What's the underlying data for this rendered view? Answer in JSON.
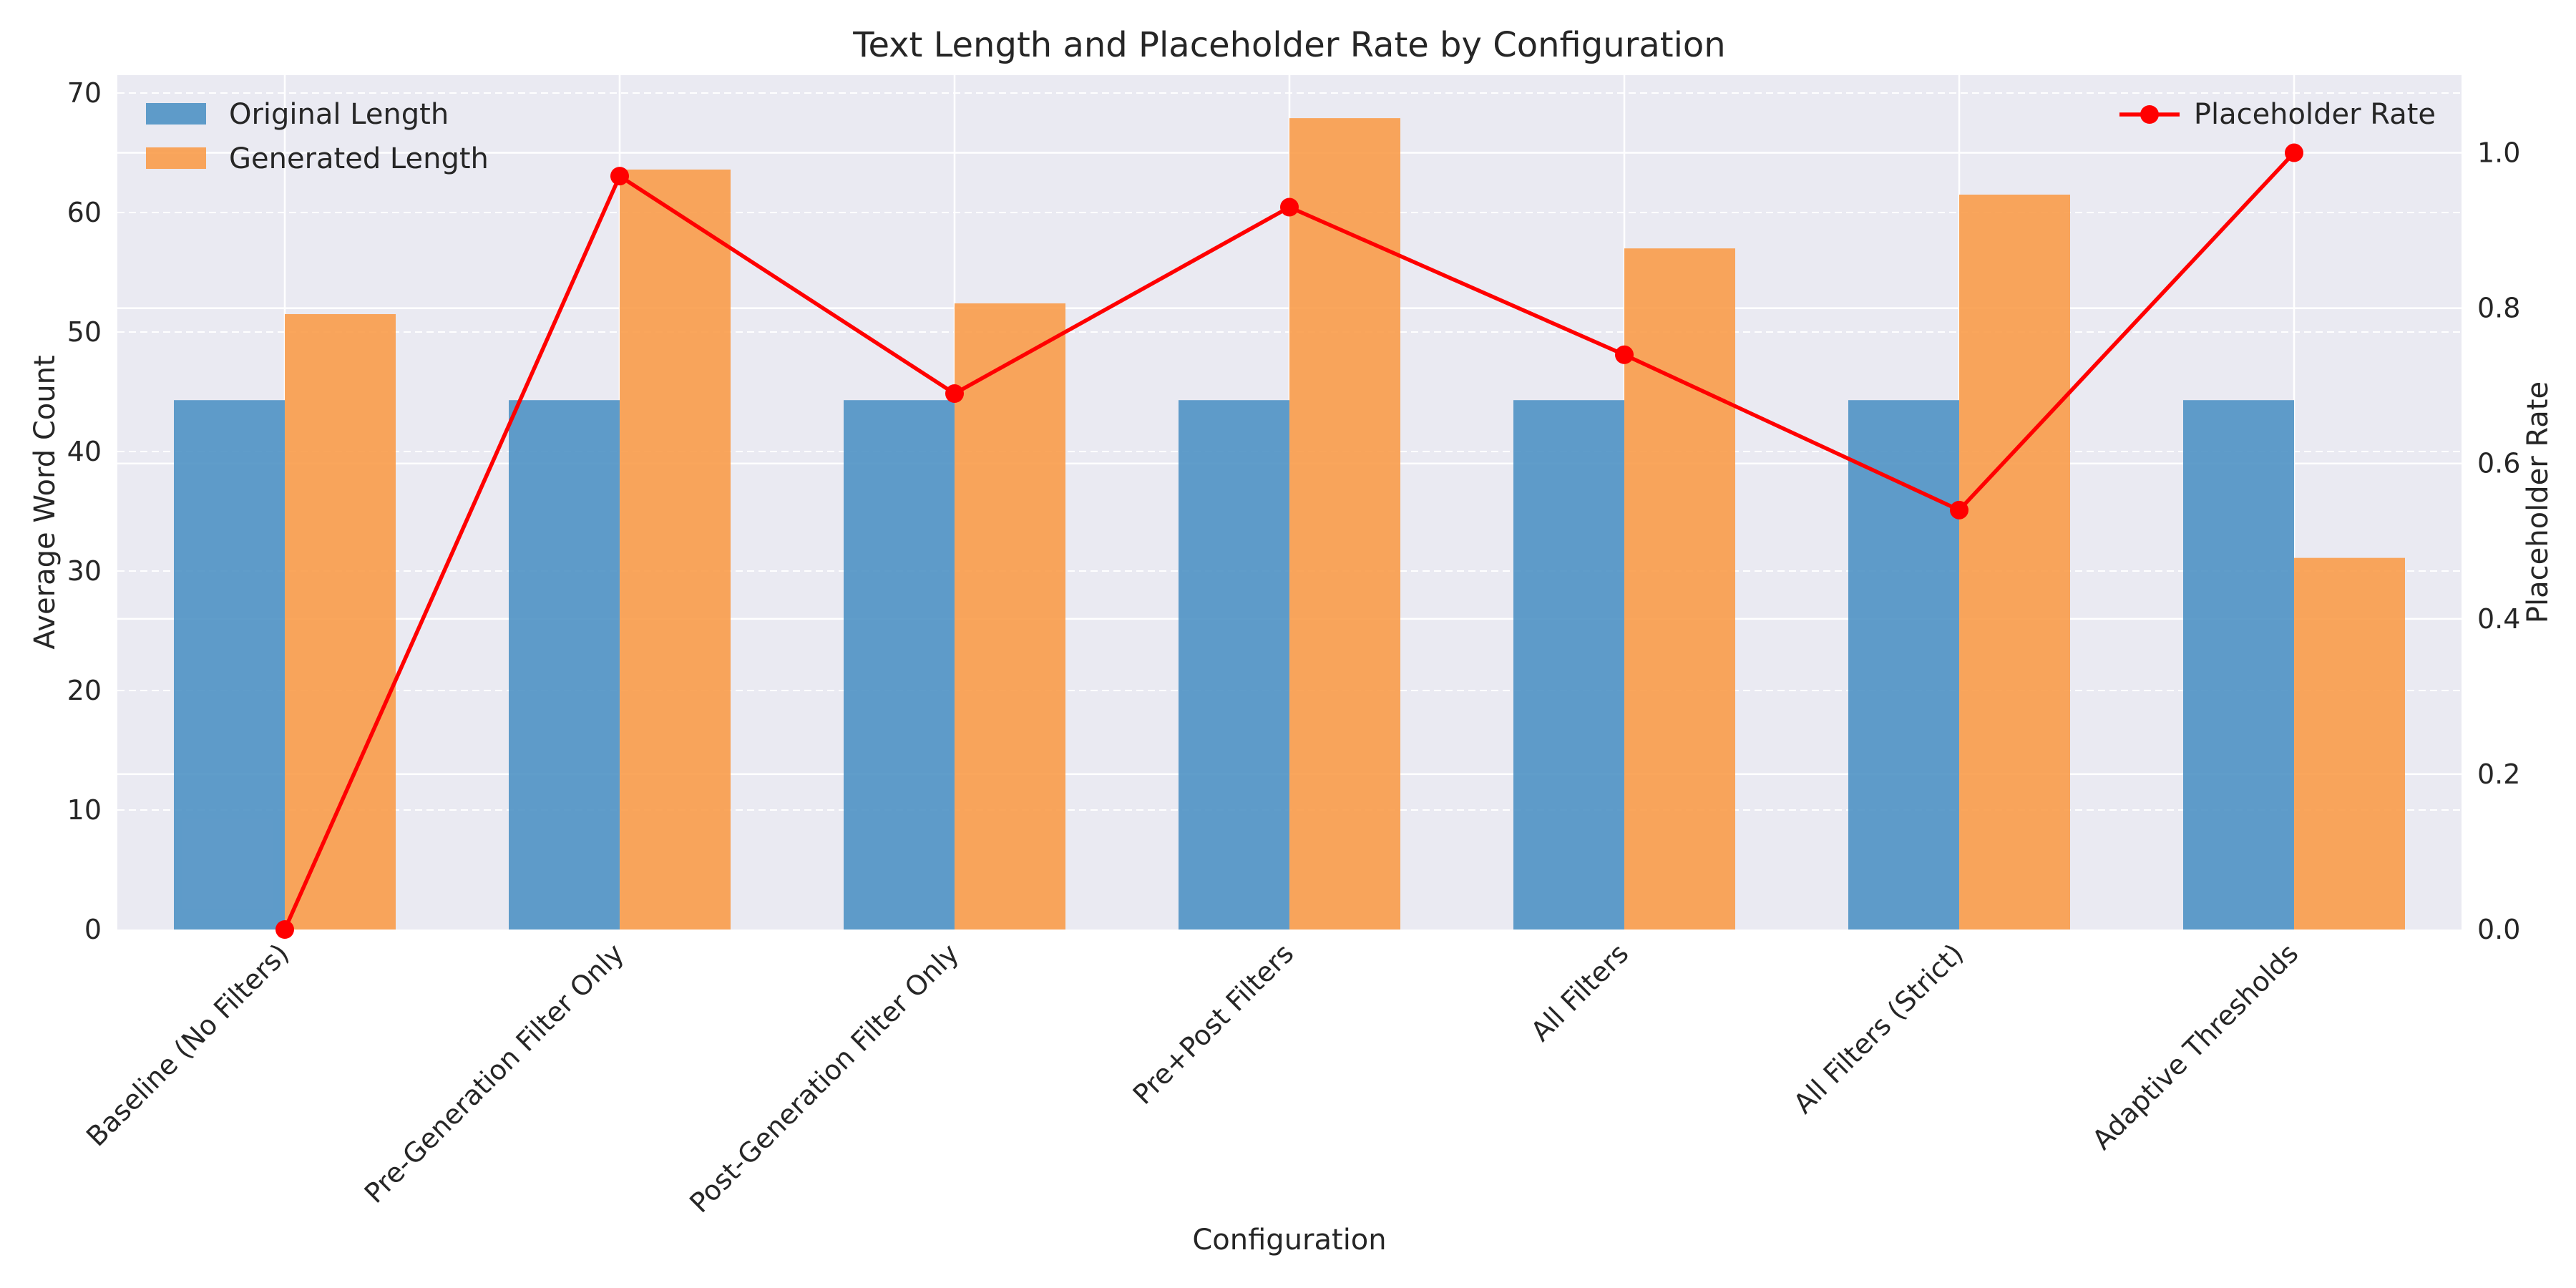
{
  "chart_data": {
    "type": "bar",
    "title": "Text Length and Placeholder Rate by Configuration",
    "xlabel": "Configuration",
    "ylabel": "Average Word Count",
    "y2label": "Placeholder Rate",
    "categories": [
      "Baseline (No Filters)",
      "Pre-Generation Filter Only",
      "Post-Generation Filter Only",
      "Pre+Post Filters",
      "All Filters",
      "All Filters (Strict)",
      "Adaptive Thresholds"
    ],
    "series": [
      {
        "name": "Original Length",
        "type": "bar",
        "axis": "left",
        "color": "#4f92c4",
        "values": [
          44.3,
          44.3,
          44.3,
          44.3,
          44.3,
          44.3,
          44.3
        ]
      },
      {
        "name": "Generated Length",
        "type": "bar",
        "axis": "left",
        "color": "#f99c4a",
        "values": [
          51.5,
          63.6,
          52.4,
          67.9,
          57.0,
          61.5,
          31.1
        ]
      },
      {
        "name": "Placeholder Rate",
        "type": "line",
        "axis": "right",
        "color": "#ff0000",
        "values": [
          0.0,
          0.97,
          0.69,
          0.93,
          0.74,
          0.54,
          1.0
        ]
      }
    ],
    "ylim": [
      0,
      71.5
    ],
    "y_ticks": [
      0,
      10,
      20,
      30,
      40,
      50,
      60,
      70
    ],
    "y2lim": [
      0,
      1.1
    ],
    "y2_ticks": [
      0.0,
      0.2,
      0.4,
      0.6,
      0.8,
      1.0
    ],
    "y2_tick_labels": [
      "0.0",
      "0.2",
      "0.4",
      "0.6",
      "0.8",
      "1.0"
    ],
    "legend_left_position": "upper-left",
    "legend_right_position": "upper-right",
    "grid": true,
    "background": "#eaeaf2"
  }
}
